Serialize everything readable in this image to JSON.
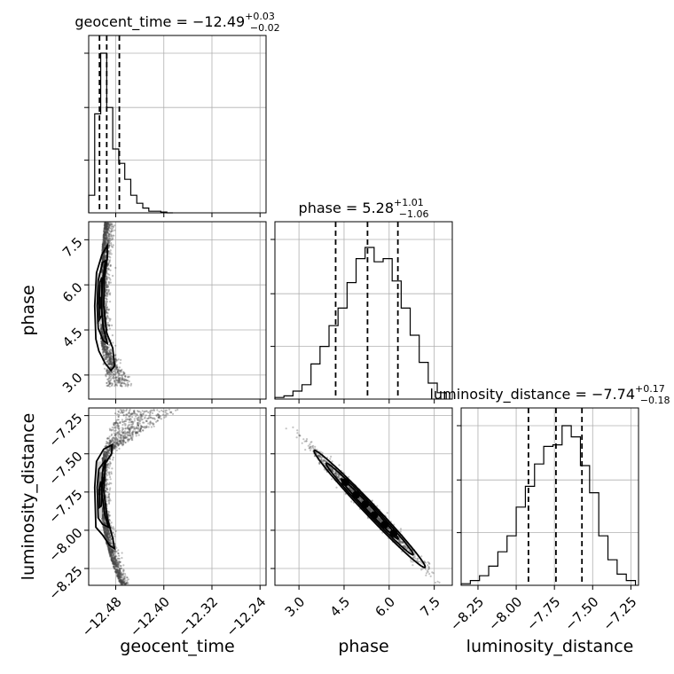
{
  "chart_data": {
    "type": "corner",
    "parameters": [
      "geocent_time",
      "phase",
      "luminosity_distance"
    ],
    "titles": [
      {
        "param": "geocent_time",
        "median": "−12.49",
        "plus": "+0.03",
        "minus": "−0.02"
      },
      {
        "param": "phase",
        "median": "5.28",
        "plus": "+1.01",
        "minus": "−1.06"
      },
      {
        "param": "luminosity_distance",
        "median": "−7.74",
        "plus": "+0.17",
        "minus": "−0.18"
      }
    ],
    "ranges": {
      "geocent_time": [
        -12.525,
        -12.23
      ],
      "phase": [
        2.2,
        8.1
      ],
      "luminosity_distance": [
        -8.36,
        -7.2
      ]
    },
    "ticks": {
      "geocent_time": [
        -12.48,
        -12.4,
        -12.32,
        -12.24
      ],
      "phase": [
        3.0,
        4.5,
        6.0,
        7.5
      ],
      "luminosity_distance": [
        -8.25,
        -8.0,
        -7.75,
        -7.5,
        -7.25
      ]
    },
    "tick_labels": {
      "geocent_time": [
        "−12.48",
        "−12.40",
        "−12.32",
        "−12.24"
      ],
      "phase": [
        "3.0",
        "4.5",
        "6.0",
        "7.5"
      ],
      "luminosity_distance": [
        "−8.25",
        "−8.00",
        "−7.75",
        "−7.50",
        "−7.25"
      ]
    },
    "quantiles": {
      "geocent_time": [
        -12.507,
        -12.495,
        -12.474
      ],
      "phase": [
        4.22,
        5.28,
        6.29
      ],
      "luminosity_distance": [
        -7.92,
        -7.74,
        -7.57
      ]
    },
    "histograms": {
      "geocent_time": {
        "edges": [
          -12.525,
          -12.515,
          -12.505,
          -12.495,
          -12.485,
          -12.475,
          -12.465,
          -12.455,
          -12.445,
          -12.435,
          -12.425,
          -12.415,
          -12.405,
          -12.395,
          -12.385
        ],
        "counts": [
          0.11,
          0.62,
          1.0,
          0.66,
          0.4,
          0.31,
          0.21,
          0.11,
          0.06,
          0.03,
          0.01,
          0.01,
          0.005,
          0.0
        ]
      },
      "phase": {
        "edges": [
          2.2,
          2.5,
          2.8,
          3.1,
          3.4,
          3.7,
          4.0,
          4.3,
          4.6,
          4.9,
          5.2,
          5.5,
          5.8,
          6.1,
          6.4,
          6.7,
          7.0,
          7.3,
          7.6,
          7.9
        ],
        "counts": [
          0.01,
          0.02,
          0.05,
          0.09,
          0.22,
          0.33,
          0.46,
          0.57,
          0.73,
          0.88,
          0.95,
          0.86,
          0.88,
          0.74,
          0.57,
          0.4,
          0.23,
          0.1,
          0.04
        ]
      },
      "luminosity_distance": {
        "edges": [
          -8.36,
          -8.3,
          -8.24,
          -8.18,
          -8.12,
          -8.06,
          -8.0,
          -7.94,
          -7.88,
          -7.82,
          -7.76,
          -7.7,
          -7.64,
          -7.58,
          -7.52,
          -7.46,
          -7.4,
          -7.34,
          -7.28,
          -7.22
        ],
        "counts": [
          0.01,
          0.03,
          0.06,
          0.12,
          0.21,
          0.31,
          0.49,
          0.62,
          0.76,
          0.87,
          0.88,
          1.0,
          0.93,
          0.75,
          0.58,
          0.31,
          0.16,
          0.07,
          0.03
        ]
      }
    }
  }
}
